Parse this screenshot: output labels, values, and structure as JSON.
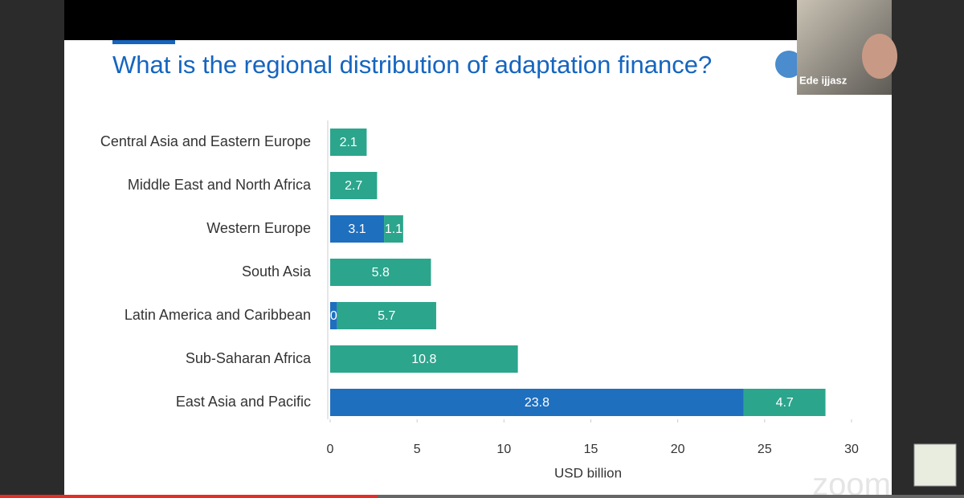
{
  "chart_data": {
    "type": "stacked-bar-horizontal",
    "title": "What is the regional distribution of adaptation finance?",
    "x_label": "USD billion",
    "categories": [
      "Central Asia and Eastern Europe",
      "Middle East and North Africa",
      "Western Europe",
      "South Asia",
      "Latin America and Caribbean",
      "Sub-Saharan Africa",
      "East Asia and Pacific"
    ],
    "series": [
      {
        "color": "#1f6fbf",
        "values": [
          null,
          null,
          3.1,
          null,
          0.4,
          null,
          23.8
        ]
      },
      {
        "color": "#2ca58d",
        "values": [
          2.1,
          2.7,
          1.1,
          5.8,
          5.7,
          10.8,
          4.7
        ]
      }
    ],
    "xlim": [
      0,
      30
    ],
    "xticks": [
      0,
      5,
      10,
      15,
      20,
      25,
      30
    ],
    "grid": false
  },
  "video": {
    "speaker": "Ede ijjasz",
    "watermark": "zoom"
  }
}
